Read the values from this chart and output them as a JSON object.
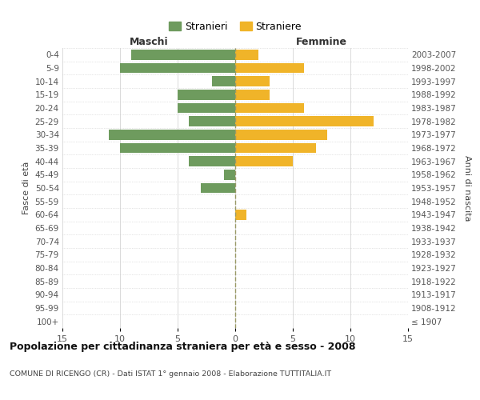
{
  "age_groups": [
    "100+",
    "95-99",
    "90-94",
    "85-89",
    "80-84",
    "75-79",
    "70-74",
    "65-69",
    "60-64",
    "55-59",
    "50-54",
    "45-49",
    "40-44",
    "35-39",
    "30-34",
    "25-29",
    "20-24",
    "15-19",
    "10-14",
    "5-9",
    "0-4"
  ],
  "birth_years": [
    "≤ 1907",
    "1908-1912",
    "1913-1917",
    "1918-1922",
    "1923-1927",
    "1928-1932",
    "1933-1937",
    "1938-1942",
    "1943-1947",
    "1948-1952",
    "1953-1957",
    "1958-1962",
    "1963-1967",
    "1968-1972",
    "1973-1977",
    "1978-1982",
    "1983-1987",
    "1988-1992",
    "1993-1997",
    "1998-2002",
    "2003-2007"
  ],
  "males": [
    0,
    0,
    0,
    0,
    0,
    0,
    0,
    0,
    0,
    0,
    3,
    1,
    4,
    10,
    11,
    4,
    5,
    5,
    2,
    10,
    9
  ],
  "females": [
    0,
    0,
    0,
    0,
    0,
    0,
    0,
    0,
    1,
    0,
    0,
    0,
    5,
    7,
    8,
    12,
    6,
    3,
    3,
    6,
    2
  ],
  "male_color": "#6e9b5e",
  "female_color": "#f0b429",
  "center_line_color": "#999966",
  "grid_color": "#cccccc",
  "bg_color": "#ffffff",
  "title": "Popolazione per cittadinanza straniera per età e sesso - 2008",
  "subtitle": "COMUNE DI RICENGO (CR) - Dati ISTAT 1° gennaio 2008 - Elaborazione TUTTITALIA.IT",
  "xlabel_left": "Maschi",
  "xlabel_right": "Femmine",
  "ylabel_left": "Fasce di età",
  "ylabel_right": "Anni di nascita",
  "legend_stranieri": "Stranieri",
  "legend_straniere": "Straniere",
  "xlim": 15
}
